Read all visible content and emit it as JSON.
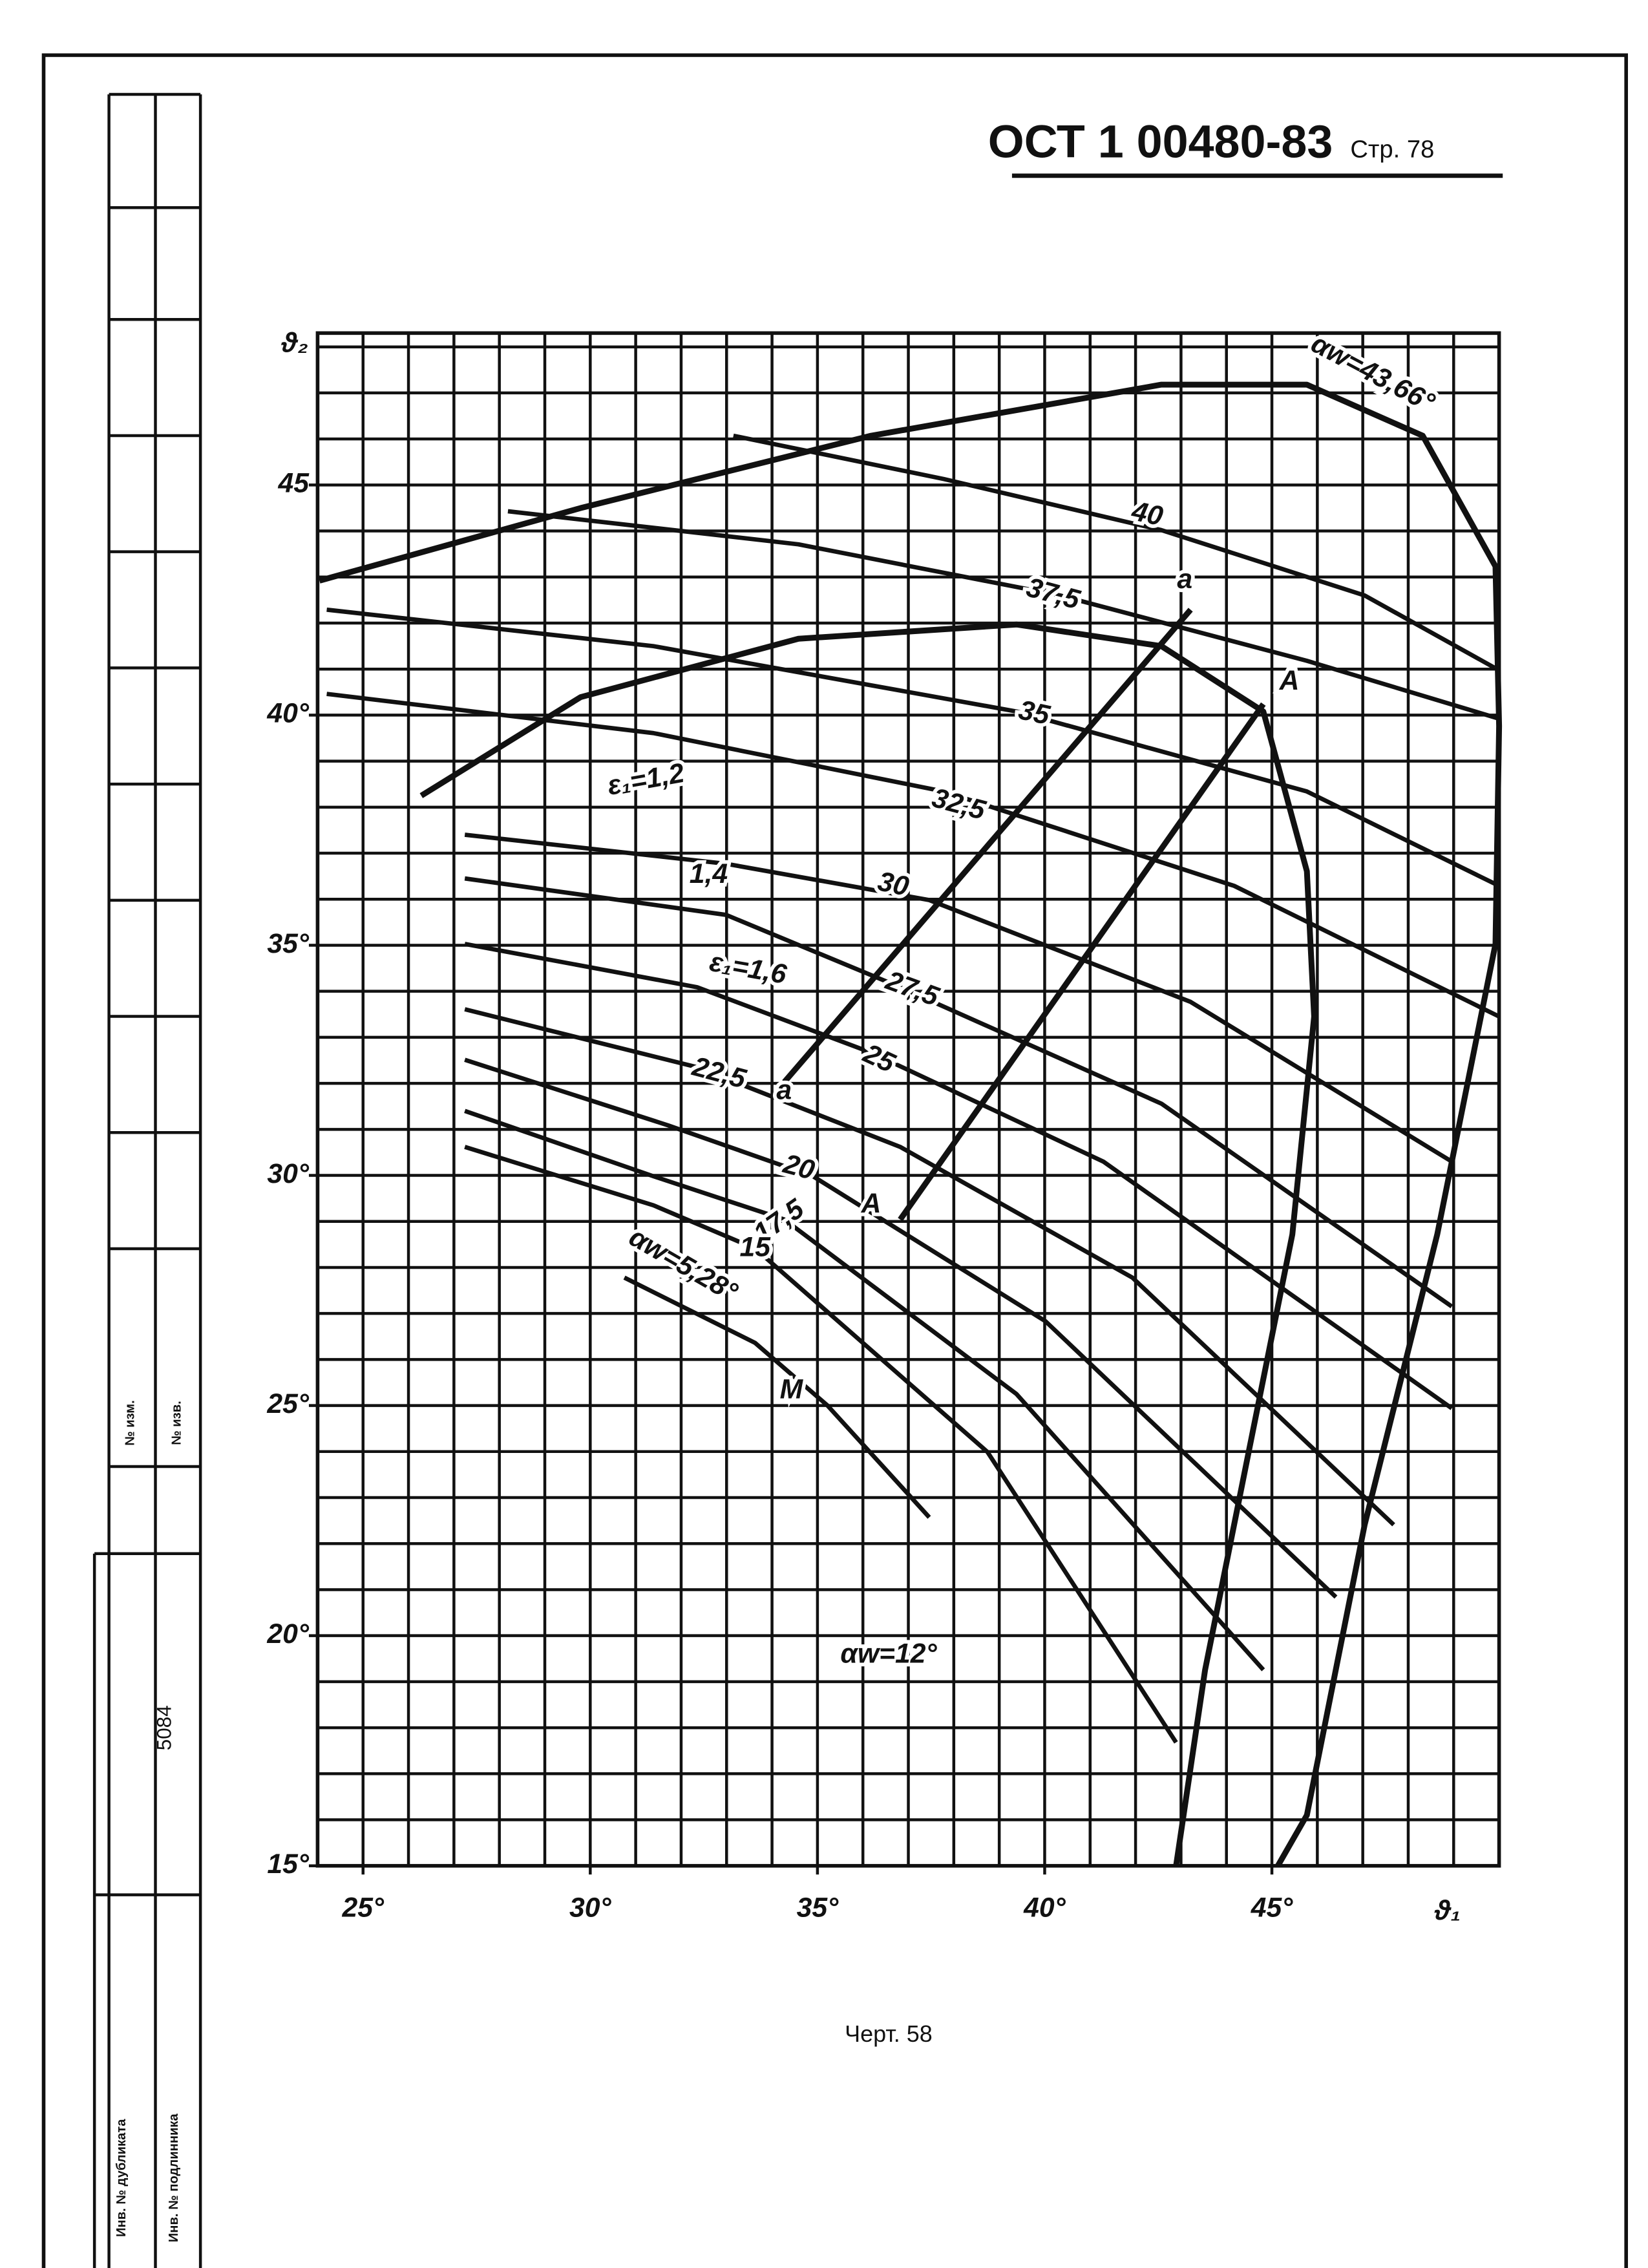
{
  "header": {
    "code": "ОСТ 1 00480-83",
    "page": "Стр. 78"
  },
  "caption": "Черт. 58",
  "stamp": {
    "number": "5084",
    "fields": [
      "№ изм.",
      "№ изв.",
      "Инв. № дубликата",
      "Инв. № подлинника"
    ]
  },
  "chart_data": {
    "type": "line",
    "color": "#111",
    "xlabel": "ϑ₁",
    "ylabel": "ϑ₂",
    "xlim": [
      24,
      50
    ],
    "ylim": [
      15,
      48.3
    ],
    "xticks": [
      {
        "value": 25,
        "label": "25°"
      },
      {
        "value": 30,
        "label": "30°"
      },
      {
        "value": 35,
        "label": "35°"
      },
      {
        "value": 40,
        "label": "40°"
      },
      {
        "value": 45,
        "label": "45°"
      }
    ],
    "yticks": [
      {
        "value": 15,
        "label": "15°"
      },
      {
        "value": 20,
        "label": "20°"
      },
      {
        "value": 25,
        "label": "25°"
      },
      {
        "value": 30,
        "label": "30°"
      },
      {
        "value": 35,
        "label": "35°"
      },
      {
        "value": 40,
        "label": "40°"
      },
      {
        "value": 45,
        "label": "45"
      }
    ],
    "xgrid": [
      24,
      25,
      26,
      27,
      28,
      29,
      30,
      31,
      32,
      33,
      34,
      35,
      36,
      37,
      38,
      39,
      40,
      41,
      42,
      43,
      44,
      45,
      46,
      47,
      48,
      49,
      50
    ],
    "ygrid": [
      15,
      16,
      17,
      18,
      19,
      20,
      21,
      22,
      23,
      24,
      25,
      26,
      27,
      28,
      29,
      30,
      31,
      32,
      33,
      34,
      35,
      36,
      37,
      38,
      39,
      40,
      41,
      42,
      43,
      44,
      45,
      46,
      47,
      48
    ],
    "series": [
      {
        "name": "40",
        "x": [
          33.15,
          37.78,
          42.57,
          47.04,
          49.9
        ],
        "values": [
          46.07,
          45.13,
          44.02,
          42.6,
          41.03
        ]
      },
      {
        "name": "37,5",
        "x": [
          28.19,
          34.58,
          40.34,
          45.77,
          50
        ],
        "values": [
          44.43,
          43.71,
          42.6,
          41.18,
          39.92
        ]
      },
      {
        "name": "35",
        "x": [
          24.2,
          31.39,
          39.38,
          45.77,
          50
        ],
        "values": [
          42.29,
          41.5,
          40.08,
          38.34,
          36.29
        ]
      },
      {
        "name": "32,5",
        "x": [
          24.2,
          31.39,
          37.78,
          44.17,
          50
        ],
        "values": [
          40.46,
          39.61,
          38.34,
          36.29,
          33.45
        ]
      },
      {
        "name": "30",
        "x": [
          27.24,
          32.99,
          37.46,
          43.21,
          48.96
        ],
        "values": [
          37.4,
          36.77,
          35.98,
          33.77,
          30.3
        ]
      },
      {
        "name": "27,5",
        "x": [
          27.24,
          32.99,
          36.82,
          42.57,
          48.96
        ],
        "values": [
          36.45,
          35.66,
          34.09,
          31.56,
          27.15
        ]
      },
      {
        "name": "25",
        "x": [
          27.24,
          32.35,
          36.18,
          41.29,
          48.96
        ],
        "values": [
          35.03,
          34.09,
          32.67,
          30.3,
          24.94
        ]
      },
      {
        "name": "22,5",
        "x": [
          27.24,
          32.35,
          36.82,
          41.93,
          47.68
        ],
        "values": [
          33.61,
          32.35,
          30.62,
          27.78,
          22.41
        ]
      },
      {
        "name": "20",
        "x": [
          27.24,
          31.71,
          34.9,
          40.02,
          46.41
        ],
        "values": [
          32.51,
          31.09,
          29.98,
          26.83,
          20.84
        ]
      },
      {
        "name": "17,5",
        "x": [
          27.24,
          31.39,
          34.27,
          39.38,
          44.81
        ],
        "values": [
          31.4,
          29.98,
          29.04,
          25.25,
          19.26
        ]
      },
      {
        "name": "15",
        "x": [
          27.24,
          31.39,
          33.63,
          38.74,
          42.89
        ],
        "values": [
          30.62,
          29.35,
          28.41,
          23.99,
          17.68
        ]
      },
      {
        "name": "αw=5,28°",
        "x": [
          30.75,
          33.63,
          35.22,
          37.46
        ],
        "values": [
          27.78,
          26.36,
          25.0,
          22.57
        ]
      },
      {
        "name": "αw=43,66°",
        "x": [
          24.04,
          29.79,
          36.18,
          42.57,
          45.77,
          48.32,
          49.92,
          50,
          49.92,
          48.64,
          47.04,
          45.77,
          45.13
        ],
        "values": [
          42.92,
          44.5,
          46.07,
          47.18,
          47.18,
          46.07,
          43.23,
          39.76,
          35.03,
          28.72,
          22.41,
          16.1,
          15
        ]
      },
      {
        "name": "αw=12°",
        "x": [
          26.28,
          29.79,
          34.58,
          39.38,
          42.57,
          44.81,
          45.77,
          45.93,
          45.45,
          44.49,
          43.53,
          42.89
        ],
        "values": [
          38.25,
          40.39,
          41.66,
          41.97,
          41.5,
          40.08,
          36.61,
          33.45,
          28.72,
          23.99,
          19.26,
          15
        ]
      },
      {
        "x": [
          34.27,
          43.21
        ],
        "values": [
          32.03,
          42.29
        ]
      },
      {
        "x": [
          36.82,
          44.81
        ],
        "values": [
          29.04,
          40.24
        ]
      }
    ],
    "annotations": [
      "ε₁=1,2",
      "1,4",
      "ε₁=1,6",
      "a",
      "a",
      "A",
      "A",
      "M"
    ]
  }
}
